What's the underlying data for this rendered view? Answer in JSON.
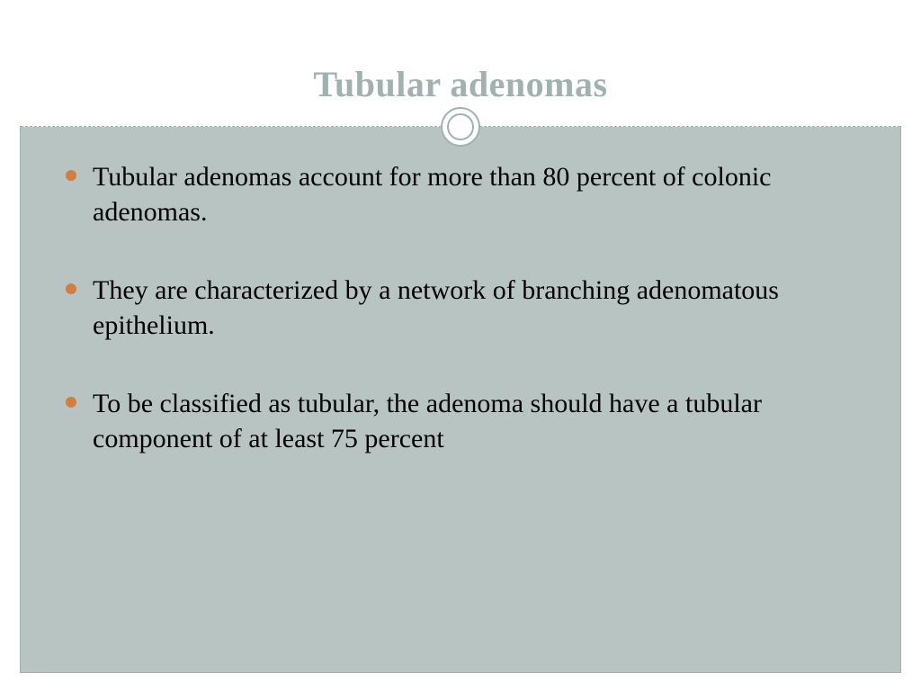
{
  "slide": {
    "title": "Tubular adenomas",
    "bullets": [
      "Tubular adenomas account for more than 80 percent of colonic adenomas.",
      "They are characterized by a network of branching adenomatous epithelium.",
      "To be classified as tubular, the adenoma should have a tubular component of at least 75 percent"
    ]
  },
  "style": {
    "title_color": "#a0b2b0",
    "title_fontsize": 40,
    "body_fontsize": 30,
    "bullet_color": "#d07e42",
    "content_bg": "#b7c4c2",
    "border_color": "#9db3b1",
    "page_bg": "#ffffff",
    "text_color": "#000000",
    "font_family": "Georgia"
  }
}
